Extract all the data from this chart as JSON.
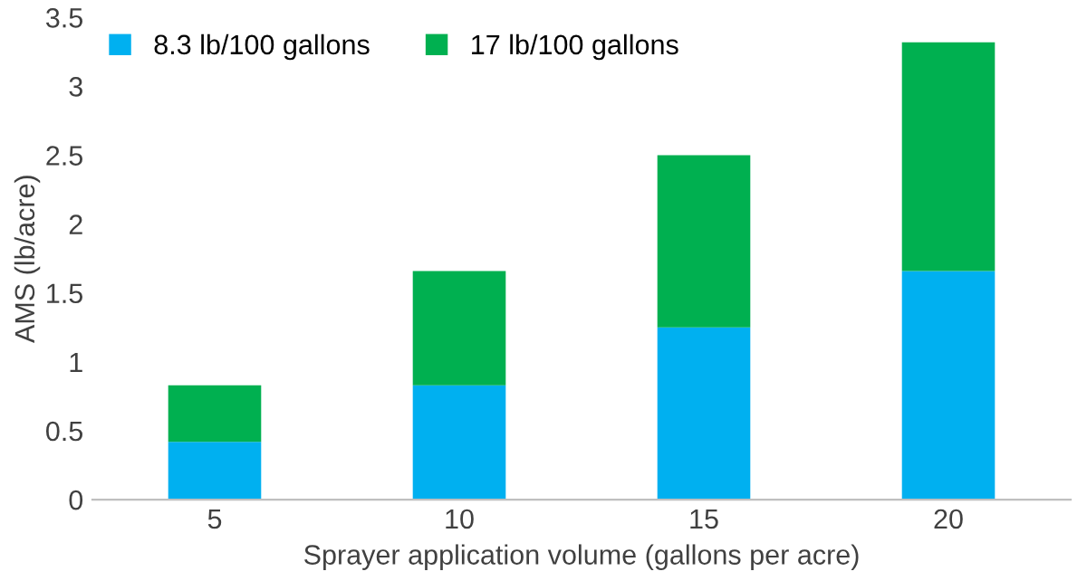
{
  "chart_data": {
    "type": "bar",
    "stacked": true,
    "xlabel": "Sprayer application volume (gallons per acre)",
    "ylabel": "AMS (lb/acre)",
    "categories": [
      "5",
      "10",
      "15",
      "20"
    ],
    "series": [
      {
        "name": "8.3 lb/100 gallons",
        "color": "#00b0f0",
        "values": [
          0.42,
          0.83,
          1.25,
          1.66
        ]
      },
      {
        "name": "17 lb/100 gallons",
        "color": "#00b050",
        "values": [
          0.41,
          0.83,
          1.25,
          1.66
        ]
      }
    ],
    "ylim": [
      0,
      3.5
    ],
    "yticks": [
      0,
      0.5,
      1,
      1.5,
      2,
      2.5,
      3,
      3.5
    ],
    "grid": false,
    "legend": "top left"
  }
}
